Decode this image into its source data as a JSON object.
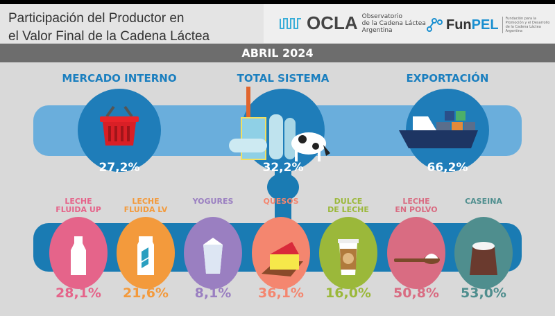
{
  "header": {
    "title_line1": "Participación del Productor en",
    "title_line2": "el Valor Final de la Cadena Láctea"
  },
  "logos": {
    "ocla": {
      "name": "OCLA",
      "sub1": "Observatorio",
      "sub2": "de la Cadena Láctea",
      "sub3": "Argentina"
    },
    "funpel": {
      "name_a": "Fun",
      "name_b": "PEL",
      "sub": "Fundación para la Promoción y el Desarrollo de la Cadena Láctea Argentina"
    }
  },
  "period": "ABRIL 2024",
  "main": [
    {
      "label": "MERCADO INTERNO",
      "value": "27,2%",
      "icon": "basket-icon"
    },
    {
      "label": "TOTAL SISTEMA",
      "value": "32,2%",
      "icon": "factory-cow-icon"
    },
    {
      "label": "EXPORTACIÓN",
      "value": "66,2%",
      "icon": "cargo-ship-icon"
    }
  ],
  "products": [
    {
      "line1": "LECHE",
      "line2": "FLUIDA UP",
      "value": "28,1%",
      "color": "#e5648a",
      "icon": "milk-bottle-icon"
    },
    {
      "line1": "LECHE",
      "line2": "FLUIDA LV",
      "value": "21,6%",
      "color": "#f39a3c",
      "icon": "milk-carton-icon"
    },
    {
      "line1": "",
      "line2": "YOGURES",
      "value": "8,1%",
      "color": "#9a7fc1",
      "icon": "yogurt-cup-icon"
    },
    {
      "line1": "",
      "line2": "QUESOS",
      "value": "36,1%",
      "color": "#f4866f",
      "icon": "cheese-icon"
    },
    {
      "line1": "DULCE",
      "line2": "DE LECHE",
      "value": "16,0%",
      "color": "#9bb83a",
      "icon": "dulce-jar-icon"
    },
    {
      "line1": "LECHE",
      "line2": "EN POLVO",
      "value": "50,8%",
      "color": "#d96c82",
      "icon": "powder-spoon-icon"
    },
    {
      "line1": "",
      "line2": "CASEINA",
      "value": "53,0%",
      "color": "#4f8e8e",
      "icon": "sack-icon"
    }
  ]
}
